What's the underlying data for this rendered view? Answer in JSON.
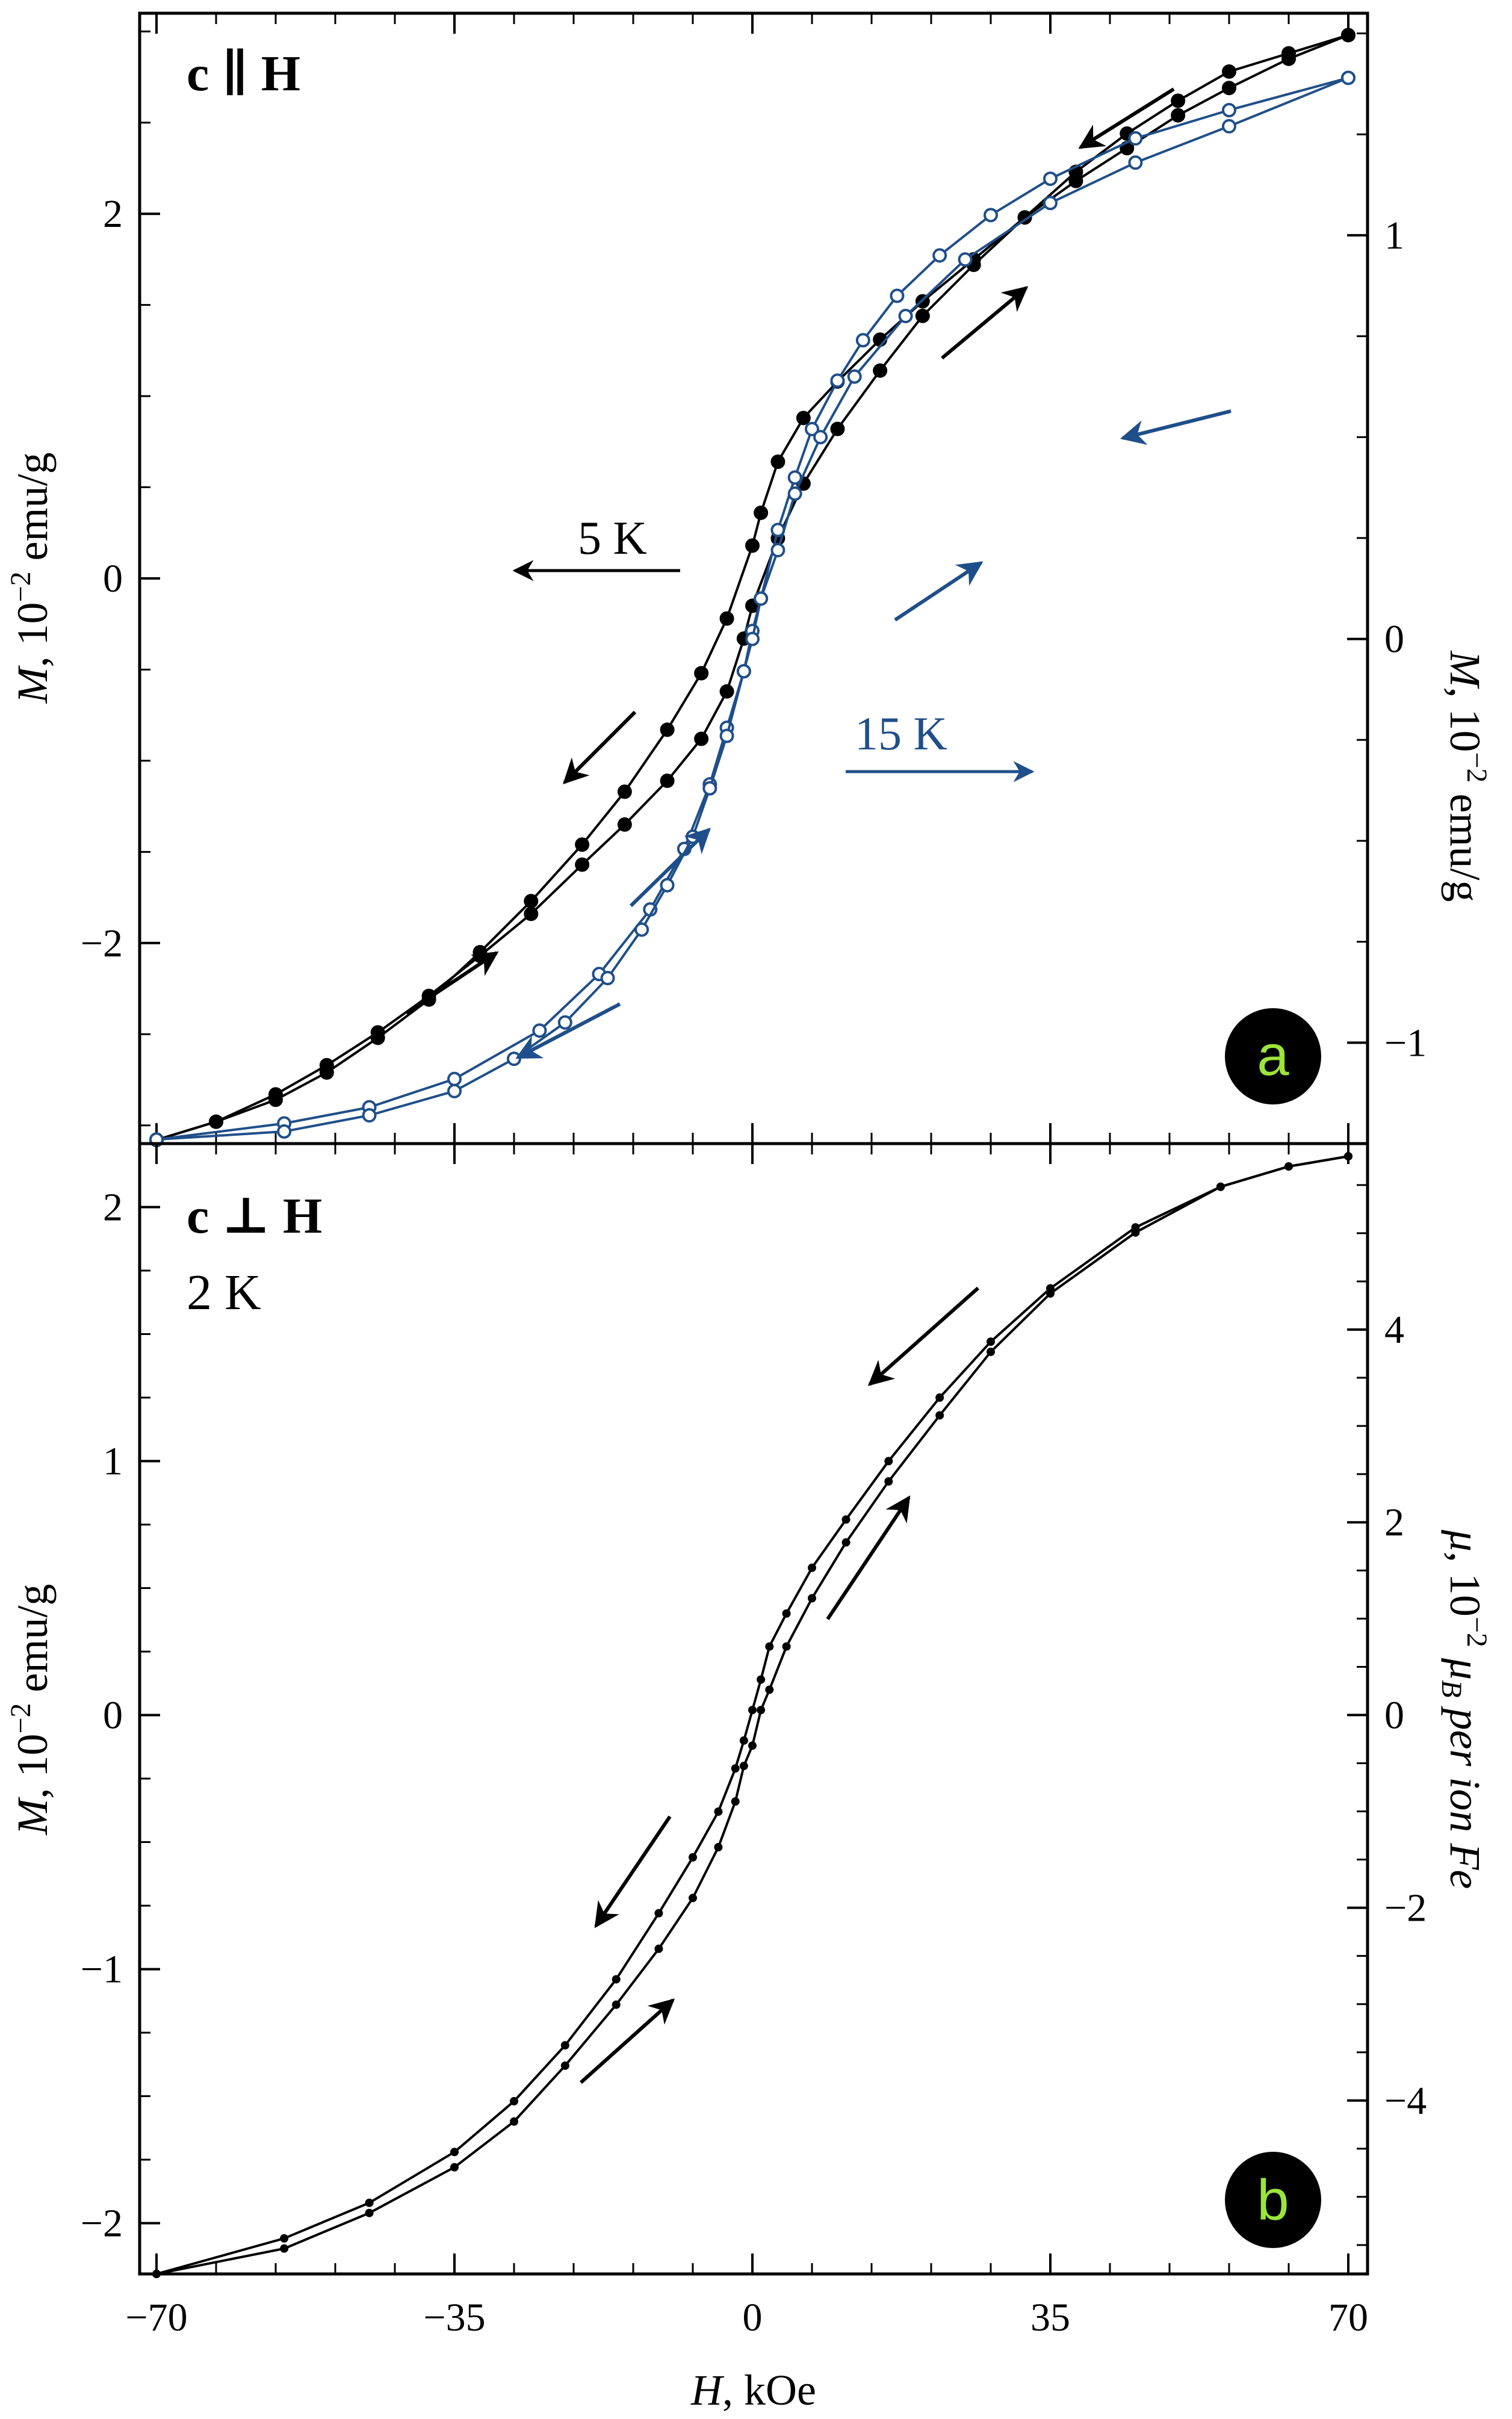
{
  "figure": {
    "x_axis": {
      "label_var": "H",
      "label_unit": ", kOe",
      "ticks": [
        -70,
        -35,
        0,
        35,
        70
      ],
      "range": [
        -70,
        70
      ]
    },
    "colors": {
      "black": "#000000",
      "blue": "#1f4f8a",
      "badge_bg": "#000000",
      "badge_text": "#9be53a"
    }
  },
  "chart_data": [
    {
      "type": "line",
      "panel": "a",
      "orientation_label": "c ∥ H",
      "badge": "a",
      "ylabel_left": {
        "var": "M",
        "text": ", 10",
        "exp": "−2",
        "unit": " emu/g"
      },
      "ylabel_right": {
        "var": "M",
        "text": ", 10",
        "exp": "−2",
        "unit": " emu/g"
      },
      "ylim_left": [
        -3.1,
        3.1
      ],
      "yticks_left": [
        -2,
        0,
        2
      ],
      "ylim_right": [
        -1.25,
        1.55
      ],
      "yticks_right": [
        -1,
        0,
        1
      ],
      "annotations": [
        {
          "text": "5 K",
          "arrow": "left"
        },
        {
          "text": "15 K",
          "arrow": "right"
        }
      ],
      "series": [
        {
          "name": "5 K",
          "axis": "left",
          "color": "#000000",
          "marker": "filled-circle",
          "branch_down": {
            "x": [
              70,
              63,
              56,
              50,
              44,
              38,
              32,
              26,
              20,
              15,
              10,
              6,
              3,
              1,
              0,
              -3,
              -6,
              -10,
              -15,
              -20,
              -26,
              -32,
              -38,
              -44,
              -50,
              -56,
              -63,
              -70
            ],
            "y": [
              2.98,
              2.85,
              2.69,
              2.54,
              2.36,
              2.18,
              1.98,
              1.75,
              1.52,
              1.31,
              1.08,
              0.88,
              0.64,
              0.36,
              0.18,
              -0.22,
              -0.52,
              -0.83,
              -1.17,
              -1.46,
              -1.77,
              -2.05,
              -2.31,
              -2.52,
              -2.71,
              -2.86,
              -2.98,
              -3.08
            ]
          },
          "branch_up": {
            "x": [
              -70,
              -63,
              -56,
              -50,
              -44,
              -38,
              -32,
              -26,
              -20,
              -15,
              -10,
              -6,
              -3,
              -1,
              0,
              3,
              6,
              10,
              15,
              20,
              26,
              32,
              38,
              44,
              50,
              56,
              63,
              70
            ],
            "y": [
              -3.08,
              -2.98,
              -2.83,
              -2.67,
              -2.49,
              -2.29,
              -2.07,
              -1.84,
              -1.57,
              -1.35,
              -1.11,
              -0.88,
              -0.62,
              -0.33,
              -0.15,
              0.22,
              0.52,
              0.82,
              1.14,
              1.44,
              1.72,
              1.98,
              2.23,
              2.44,
              2.62,
              2.78,
              2.88,
              2.98
            ]
          }
        },
        {
          "name": "15 K",
          "axis": "right",
          "color": "#1f4f8a",
          "marker": "open-circle",
          "branch_down": {
            "x": [
              70,
              56,
              45,
              35,
              28,
              22,
              17,
              13,
              10,
              7,
              5,
              3,
              1,
              0,
              -1,
              -3,
              -5,
              -8,
              -12,
              -18,
              -25,
              -35,
              -45,
              -55,
              -70
            ],
            "y": [
              1.39,
              1.31,
              1.24,
              1.14,
              1.05,
              0.95,
              0.85,
              0.74,
              0.64,
              0.52,
              0.4,
              0.27,
              0.1,
              0.02,
              -0.08,
              -0.22,
              -0.36,
              -0.52,
              -0.67,
              -0.83,
              -0.97,
              -1.09,
              -1.16,
              -1.2,
              -1.24
            ]
          },
          "branch_up": {
            "x": [
              -70,
              -55,
              -45,
              -35,
              -28,
              -22,
              -17,
              -13,
              -10,
              -7,
              -5,
              -3,
              -1,
              0,
              1,
              3,
              5,
              8,
              12,
              18,
              25,
              35,
              45,
              56,
              70
            ],
            "y": [
              -1.24,
              -1.22,
              -1.18,
              -1.12,
              -1.04,
              -0.95,
              -0.84,
              -0.72,
              -0.61,
              -0.49,
              -0.37,
              -0.24,
              -0.08,
              0.0,
              0.1,
              0.22,
              0.36,
              0.5,
              0.65,
              0.8,
              0.94,
              1.08,
              1.18,
              1.27,
              1.39
            ]
          }
        }
      ]
    },
    {
      "type": "line",
      "panel": "b",
      "orientation_label": "c ⊥ H",
      "temperature_label": "2 K",
      "badge": "b",
      "ylabel_left": {
        "var": "M",
        "text": ", 10",
        "exp": "−2",
        "unit": " emu/g"
      },
      "ylabel_right": {
        "var": "μ",
        "text": ", 10",
        "exp": "−2",
        "unit": " μ",
        "sub": "B",
        "tail": " per ion Fe"
      },
      "ylim_left": [
        -2.2,
        2.25
      ],
      "yticks_left": [
        -2,
        -1,
        0,
        1,
        2
      ],
      "ylim_right": [
        -5.8,
        5.93
      ],
      "yticks_right": [
        -4,
        -2,
        0,
        2,
        4
      ],
      "series": [
        {
          "name": "2 K",
          "axis": "left",
          "color": "#000000",
          "marker": "dot",
          "branch_down": {
            "x": [
              70,
              63,
              55,
              45,
              35,
              28,
              22,
              16,
              11,
              7,
              4,
              2,
              1,
              0,
              -1,
              -2,
              -4,
              -7,
              -11,
              -16,
              -22,
              -28,
              -35,
              -45,
              -55,
              -70
            ],
            "y": [
              2.2,
              2.16,
              2.08,
              1.92,
              1.68,
              1.47,
              1.25,
              1.0,
              0.77,
              0.58,
              0.4,
              0.27,
              0.14,
              0.02,
              -0.1,
              -0.21,
              -0.38,
              -0.56,
              -0.78,
              -1.04,
              -1.3,
              -1.52,
              -1.72,
              -1.92,
              -2.06,
              -2.2
            ]
          },
          "branch_up": {
            "x": [
              -70,
              -55,
              -45,
              -35,
              -28,
              -22,
              -16,
              -11,
              -7,
              -4,
              -2,
              -1,
              0,
              1,
              2,
              4,
              7,
              11,
              16,
              22,
              28,
              35,
              45,
              55,
              63,
              70
            ],
            "y": [
              -2.2,
              -2.1,
              -1.96,
              -1.78,
              -1.6,
              -1.38,
              -1.14,
              -0.92,
              -0.72,
              -0.52,
              -0.34,
              -0.2,
              -0.12,
              0.02,
              0.1,
              0.27,
              0.46,
              0.68,
              0.92,
              1.18,
              1.43,
              1.66,
              1.9,
              2.08,
              2.16,
              2.2
            ]
          }
        }
      ]
    }
  ]
}
